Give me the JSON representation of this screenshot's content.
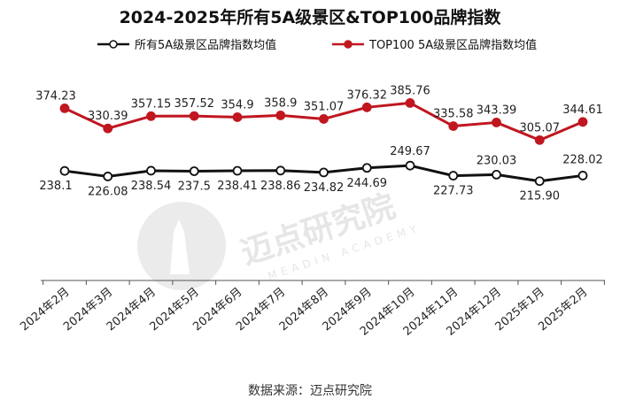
{
  "chart_data": {
    "type": "line",
    "title": "2024-2025年所有5A级景区&TOP100品牌指数",
    "categories": [
      "2024年2月",
      "2024年3月",
      "2024年4月",
      "2024年5月",
      "2024年6月",
      "2024年7月",
      "2024年8月",
      "2024年9月",
      "2024年10月",
      "2024年11月",
      "2024年12月",
      "2025年1月",
      "2025年2月"
    ],
    "series": [
      {
        "name": "所有5A级景区品牌指数均值",
        "color": "#111111",
        "values": [
          238.1,
          226.08,
          238.54,
          237.5,
          238.41,
          238.86,
          234.82,
          244.69,
          249.67,
          227.73,
          230.03,
          215.9,
          228.02
        ],
        "labels": [
          "238.1",
          "226.08",
          "238.54",
          "237.5",
          "238.41",
          "238.86",
          "234.82",
          "244.69",
          "249.67",
          "227.73",
          "230.03",
          "215.90",
          "228.02"
        ]
      },
      {
        "name": "TOP100 5A级景区品牌指数均值",
        "color": "#c0161f",
        "values": [
          374.23,
          330.39,
          357.15,
          357.52,
          354.9,
          358.9,
          351.07,
          376.32,
          385.76,
          335.58,
          343.39,
          305.07,
          344.61
        ],
        "labels": [
          "374.23",
          "330.39",
          "357.15",
          "357.52",
          "354.9",
          "358.9",
          "351.07",
          "376.32",
          "385.76",
          "335.58",
          "343.39",
          "305.07",
          "344.61"
        ]
      }
    ],
    "ylim": [
      0,
      470
    ],
    "grid": false,
    "legend": "top-center"
  },
  "watermark": {
    "text": "迈点研究院",
    "subtext": "MEADIN ACADEMY"
  },
  "source": "数据来源：迈点研究院"
}
